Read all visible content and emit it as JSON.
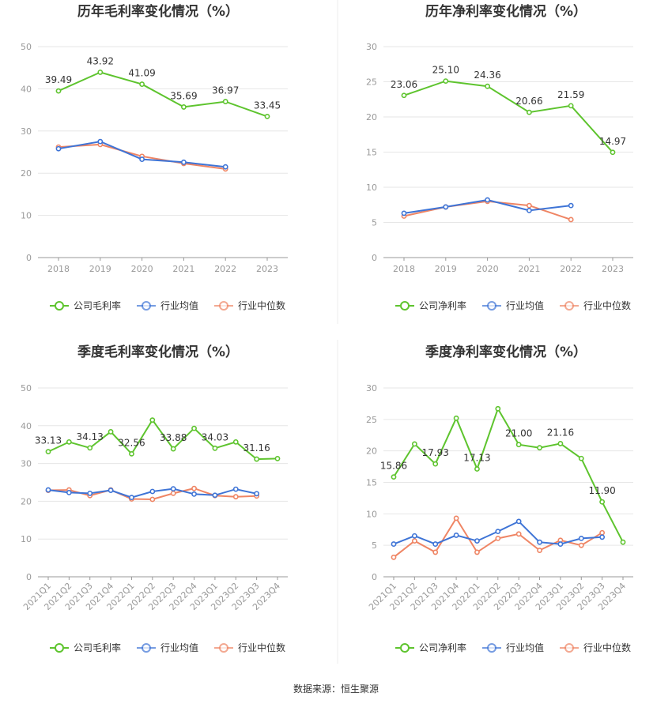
{
  "source": "数据来源：恒生聚源",
  "colors": {
    "company": "#5ec42e",
    "industry_avg": "#3e74d6",
    "industry_median": "#ef8564"
  },
  "chart_data": [
    {
      "type": "line",
      "title": "历年毛利率变化情况（%）",
      "categories": [
        "2018",
        "2019",
        "2020",
        "2021",
        "2022",
        "2023"
      ],
      "ylim": [
        0,
        50
      ],
      "yticks": [
        0,
        10,
        20,
        30,
        40,
        50
      ],
      "grid": true,
      "legend_position": "bottom",
      "series": [
        {
          "name": "公司毛利率",
          "color": "#5ec42e",
          "values": [
            39.49,
            43.92,
            41.09,
            35.69,
            36.97,
            33.45
          ],
          "labels": [
            "39.49",
            "43.92",
            "41.09",
            "35.69",
            "36.97",
            "33.45"
          ]
        },
        {
          "name": "行业均值",
          "color": "#3e74d6",
          "values": [
            25.8,
            27.5,
            23.3,
            22.6,
            21.5,
            null
          ]
        },
        {
          "name": "行业中位数",
          "color": "#ef8564",
          "values": [
            26.2,
            26.8,
            24.0,
            22.3,
            21.0,
            null
          ]
        }
      ]
    },
    {
      "type": "line",
      "title": "历年净利率变化情况（%）",
      "categories": [
        "2018",
        "2019",
        "2020",
        "2021",
        "2022",
        "2023"
      ],
      "ylim": [
        0,
        30
      ],
      "yticks": [
        0,
        5,
        10,
        15,
        20,
        25,
        30
      ],
      "grid": true,
      "legend_position": "bottom",
      "series": [
        {
          "name": "公司净利率",
          "color": "#5ec42e",
          "values": [
            23.06,
            25.1,
            24.36,
            20.66,
            21.59,
            14.97
          ],
          "labels": [
            "23.06",
            "25.10",
            "24.36",
            "20.66",
            "21.59",
            "14.97"
          ]
        },
        {
          "name": "行业均值",
          "color": "#3e74d6",
          "values": [
            6.3,
            7.2,
            8.2,
            6.7,
            7.4,
            null
          ]
        },
        {
          "name": "行业中位数",
          "color": "#ef8564",
          "values": [
            5.9,
            7.2,
            8.0,
            7.4,
            5.4,
            null
          ]
        }
      ]
    },
    {
      "type": "line",
      "title": "季度毛利率变化情况（%）",
      "categories": [
        "2021Q1",
        "2021Q2",
        "2021Q3",
        "2021Q4",
        "2022Q1",
        "2022Q2",
        "2022Q3",
        "2022Q4",
        "2023Q1",
        "2023Q2",
        "2023Q3",
        "2023Q4"
      ],
      "ylim": [
        0,
        50
      ],
      "yticks": [
        0,
        10,
        20,
        30,
        40,
        50
      ],
      "grid": true,
      "legend_position": "bottom",
      "series": [
        {
          "name": "公司毛利率",
          "color": "#5ec42e",
          "values": [
            33.13,
            35.7,
            34.13,
            38.4,
            32.56,
            41.5,
            33.88,
            39.3,
            34.03,
            35.7,
            31.16,
            31.3
          ],
          "labels": [
            "33.13",
            "",
            "34.13",
            "",
            "32.56",
            "",
            "33.88",
            "",
            "34.03",
            "",
            "31.16",
            ""
          ]
        },
        {
          "name": "行业均值",
          "color": "#3e74d6",
          "values": [
            23.0,
            22.3,
            22.1,
            22.9,
            21.0,
            22.6,
            23.3,
            21.9,
            21.6,
            23.2,
            22.0,
            null
          ]
        },
        {
          "name": "行业中位数",
          "color": "#ef8564",
          "values": [
            22.9,
            23.0,
            21.5,
            23.0,
            20.6,
            20.5,
            22.1,
            23.4,
            21.5,
            21.2,
            21.4,
            null
          ]
        }
      ]
    },
    {
      "type": "line",
      "title": "季度净利率变化情况（%）",
      "categories": [
        "2021Q1",
        "2021Q2",
        "2021Q3",
        "2021Q4",
        "2022Q1",
        "2022Q2",
        "2022Q3",
        "2022Q4",
        "2023Q1",
        "2023Q2",
        "2023Q3",
        "2023Q4"
      ],
      "ylim": [
        0,
        30
      ],
      "yticks": [
        0,
        5,
        10,
        15,
        20,
        25,
        30
      ],
      "grid": true,
      "legend_position": "bottom",
      "series": [
        {
          "name": "公司净利率",
          "color": "#5ec42e",
          "values": [
            15.86,
            21.1,
            17.93,
            25.2,
            17.13,
            26.7,
            21.0,
            20.5,
            21.16,
            18.8,
            11.9,
            5.5
          ],
          "labels": [
            "15.86",
            "",
            "17.93",
            "",
            "17.13",
            "",
            "21.00",
            "",
            "21.16",
            "",
            "11.90",
            ""
          ]
        },
        {
          "name": "行业均值",
          "color": "#3e74d6",
          "values": [
            5.2,
            6.5,
            5.2,
            6.6,
            5.7,
            7.2,
            8.8,
            5.5,
            5.2,
            6.1,
            6.3,
            null
          ]
        },
        {
          "name": "行业中位数",
          "color": "#ef8564",
          "values": [
            3.1,
            5.7,
            3.9,
            9.3,
            3.9,
            6.1,
            6.8,
            4.2,
            5.8,
            5.0,
            7.0,
            null
          ]
        }
      ]
    }
  ]
}
